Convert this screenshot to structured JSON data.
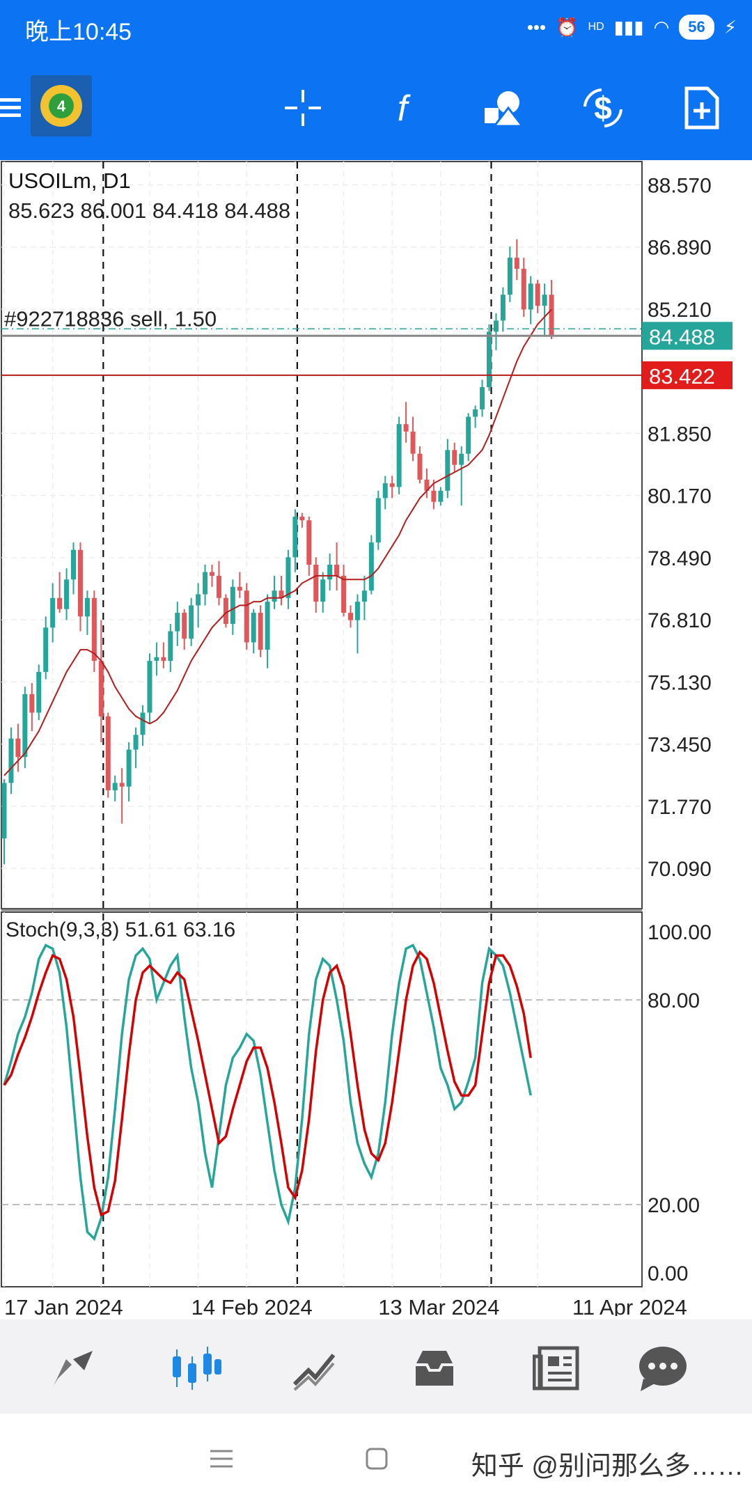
{
  "status": {
    "time": "晚上10:45",
    "battery": "56",
    "network": "HD"
  },
  "toolbar": {
    "icons": [
      "menu-icon",
      "metatrader-logo",
      "crosshair-icon",
      "function-icon",
      "objects-icon",
      "trade-dollar-icon",
      "new-order-icon"
    ]
  },
  "chart_data": {
    "type": "candlestick",
    "symbol": "USOILm",
    "timeframe": "D1",
    "title": "USOILm, D1",
    "ohlc_header": "85.623 86.001 84.418 84.488",
    "order_label": "#922718836 sell, 1.50",
    "current_price": 84.488,
    "current_price_label": "84.488",
    "order_price": 83.422,
    "order_price_label": "83.422",
    "ylim": [
      69.0,
      89.2
    ],
    "y_ticks": [
      "88.570",
      "86.890",
      "85.210",
      "81.850",
      "80.170",
      "78.490",
      "76.810",
      "75.130",
      "73.450",
      "71.770",
      "70.090"
    ],
    "y_tick_values": [
      88.57,
      86.89,
      85.21,
      81.85,
      80.17,
      78.49,
      76.81,
      75.13,
      73.45,
      71.77,
      70.09
    ],
    "x_ticks": [
      "17 Jan 2024",
      "14 Feb 2024",
      "13 Mar 2024",
      "11 Apr 2024"
    ],
    "x_tick_index": [
      0,
      27,
      54,
      82
    ],
    "period_separators_index": [
      14,
      42,
      70
    ],
    "candles": [
      [
        70.9,
        72.5,
        70.2,
        72.4
      ],
      [
        72.4,
        73.9,
        72.1,
        73.6
      ],
      [
        73.6,
        74.0,
        72.7,
        73.1
      ],
      [
        73.1,
        75.0,
        72.8,
        74.8
      ],
      [
        74.8,
        75.1,
        73.8,
        74.3
      ],
      [
        74.3,
        75.6,
        74.1,
        75.4
      ],
      [
        75.4,
        76.9,
        75.2,
        76.6
      ],
      [
        76.6,
        77.8,
        76.2,
        77.4
      ],
      [
        77.4,
        78.1,
        77.0,
        77.1
      ],
      [
        77.1,
        78.2,
        76.8,
        77.9
      ],
      [
        77.9,
        78.9,
        77.5,
        78.7
      ],
      [
        78.7,
        78.9,
        76.5,
        76.9
      ],
      [
        76.9,
        77.6,
        76.4,
        77.4
      ],
      [
        77.4,
        77.6,
        75.4,
        75.7
      ],
      [
        75.7,
        76.8,
        73.5,
        74.2
      ],
      [
        74.2,
        74.3,
        72.0,
        72.2
      ],
      [
        72.2,
        72.6,
        71.9,
        72.4
      ],
      [
        72.4,
        72.8,
        71.3,
        72.3
      ],
      [
        72.3,
        73.5,
        71.9,
        73.3
      ],
      [
        73.3,
        73.9,
        72.8,
        73.7
      ],
      [
        73.7,
        74.5,
        73.4,
        74.3
      ],
      [
        74.3,
        75.9,
        74.0,
        75.7
      ],
      [
        75.7,
        76.2,
        75.3,
        75.8
      ],
      [
        75.8,
        76.2,
        75.5,
        75.7
      ],
      [
        75.7,
        76.7,
        75.4,
        76.5
      ],
      [
        76.5,
        77.3,
        76.1,
        77.0
      ],
      [
        77.0,
        77.1,
        76.0,
        76.3
      ],
      [
        76.3,
        77.4,
        76.1,
        77.2
      ],
      [
        77.2,
        77.8,
        76.6,
        77.5
      ],
      [
        77.5,
        78.3,
        77.2,
        78.1
      ],
      [
        78.1,
        78.3,
        77.7,
        78.0
      ],
      [
        78.0,
        78.4,
        77.2,
        77.4
      ],
      [
        77.4,
        77.5,
        76.6,
        76.7
      ],
      [
        76.7,
        77.9,
        76.4,
        77.7
      ],
      [
        77.7,
        78.1,
        77.4,
        77.6
      ],
      [
        77.6,
        77.8,
        76.0,
        76.2
      ],
      [
        76.2,
        77.1,
        75.9,
        77.0
      ],
      [
        77.0,
        77.2,
        75.8,
        76.0
      ],
      [
        76.0,
        77.5,
        75.5,
        77.3
      ],
      [
        77.3,
        78.0,
        77.1,
        77.6
      ],
      [
        77.6,
        78.0,
        77.2,
        77.4
      ],
      [
        77.4,
        78.7,
        77.1,
        78.5
      ],
      [
        78.5,
        79.8,
        78.1,
        79.6
      ],
      [
        79.6,
        79.7,
        79.3,
        79.5
      ],
      [
        79.5,
        79.6,
        78.0,
        78.3
      ],
      [
        78.3,
        78.5,
        77.0,
        77.3
      ],
      [
        77.3,
        78.1,
        77.0,
        77.9
      ],
      [
        77.9,
        78.6,
        77.6,
        78.3
      ],
      [
        78.3,
        78.9,
        77.6,
        78.0
      ],
      [
        78.0,
        78.3,
        76.9,
        77.0
      ],
      [
        77.0,
        77.2,
        76.6,
        76.8
      ],
      [
        76.8,
        77.5,
        75.9,
        77.3
      ],
      [
        77.3,
        78.0,
        76.8,
        77.6
      ],
      [
        77.6,
        79.1,
        77.5,
        78.9
      ],
      [
        78.9,
        80.3,
        78.7,
        80.1
      ],
      [
        80.1,
        80.7,
        79.8,
        80.5
      ],
      [
        80.5,
        80.7,
        80.1,
        80.4
      ],
      [
        80.4,
        82.3,
        80.2,
        82.1
      ],
      [
        82.1,
        82.7,
        81.6,
        81.9
      ],
      [
        81.9,
        82.3,
        81.1,
        81.3
      ],
      [
        81.3,
        81.5,
        80.5,
        80.6
      ],
      [
        80.6,
        80.9,
        80.1,
        80.3
      ],
      [
        80.3,
        80.6,
        79.8,
        80.0
      ],
      [
        80.0,
        80.4,
        79.9,
        80.3
      ],
      [
        80.3,
        81.7,
        80.1,
        81.4
      ],
      [
        81.4,
        81.6,
        80.8,
        81.0
      ],
      [
        81.0,
        81.5,
        79.9,
        81.3
      ],
      [
        81.3,
        82.4,
        81.1,
        82.3
      ],
      [
        82.3,
        82.6,
        82.0,
        82.5
      ],
      [
        82.5,
        83.3,
        82.3,
        83.1
      ],
      [
        83.1,
        84.8,
        83.0,
        84.6
      ],
      [
        84.6,
        85.1,
        84.1,
        84.9
      ],
      [
        84.9,
        85.8,
        84.6,
        85.6
      ],
      [
        85.6,
        86.9,
        85.4,
        86.6
      ],
      [
        86.6,
        87.1,
        86.0,
        86.3
      ],
      [
        86.3,
        86.6,
        85.0,
        85.2
      ],
      [
        85.2,
        86.1,
        84.8,
        85.9
      ],
      [
        85.9,
        86.0,
        85.1,
        85.3
      ],
      [
        85.3,
        85.9,
        84.5,
        85.6
      ],
      [
        85.6,
        86.0,
        84.4,
        84.5
      ]
    ],
    "ma": [
      72.6,
      72.8,
      73.0,
      73.2,
      73.5,
      73.8,
      74.2,
      74.6,
      75.0,
      75.4,
      75.7,
      76.0,
      76.0,
      75.9,
      75.7,
      75.4,
      75.0,
      74.7,
      74.4,
      74.2,
      74.1,
      74.0,
      74.1,
      74.3,
      74.6,
      74.9,
      75.3,
      75.7,
      76.0,
      76.3,
      76.6,
      76.8,
      77.0,
      77.1,
      77.2,
      77.2,
      77.3,
      77.3,
      77.4,
      77.4,
      77.4,
      77.5,
      77.6,
      77.8,
      77.9,
      78.0,
      78.0,
      78.0,
      78.0,
      77.9,
      77.9,
      77.9,
      77.9,
      78.0,
      78.2,
      78.5,
      78.8,
      79.1,
      79.5,
      79.8,
      80.1,
      80.3,
      80.5,
      80.6,
      80.7,
      80.8,
      80.9,
      81.0,
      81.2,
      81.4,
      81.8,
      82.3,
      82.8,
      83.3,
      83.8,
      84.2,
      84.5,
      84.8,
      85.0,
      85.2
    ],
    "stoch": {
      "label": "Stoch(9,3,3) 51.61 63.16",
      "k_value": 51.61,
      "d_value": 63.16,
      "ylim": [
        0,
        100
      ],
      "y_ticks": [
        "100.00",
        "80.00",
        "20.00",
        "0.00"
      ],
      "y_tick_values": [
        100,
        80,
        20,
        0
      ],
      "levels": [
        80,
        20
      ],
      "k": [
        55,
        62,
        70,
        75,
        82,
        92,
        96,
        95,
        88,
        72,
        50,
        28,
        12,
        10,
        16,
        28,
        48,
        70,
        86,
        93,
        95,
        92,
        80,
        85,
        90,
        93,
        75,
        60,
        50,
        35,
        25,
        40,
        55,
        63,
        66,
        70,
        68,
        58,
        44,
        30,
        20,
        15,
        25,
        45,
        70,
        86,
        92,
        90,
        80,
        68,
        50,
        38,
        32,
        28,
        35,
        50,
        70,
        85,
        95,
        96,
        92,
        82,
        72,
        60,
        55,
        48,
        50,
        56,
        63,
        85,
        95,
        93,
        90,
        82,
        72,
        62,
        52
      ],
      "d": [
        55,
        58,
        64,
        69,
        75,
        82,
        88,
        93,
        92,
        86,
        75,
        58,
        40,
        25,
        17,
        18,
        27,
        45,
        64,
        80,
        88,
        90,
        88,
        86,
        85,
        88,
        86,
        77,
        68,
        58,
        48,
        38,
        40,
        48,
        55,
        62,
        66,
        66,
        60,
        50,
        38,
        25,
        22,
        30,
        45,
        65,
        80,
        88,
        90,
        84,
        70,
        55,
        42,
        35,
        33,
        38,
        50,
        65,
        80,
        90,
        94,
        92,
        85,
        75,
        65,
        56,
        52,
        52,
        55,
        70,
        85,
        93,
        93,
        90,
        84,
        76,
        63
      ]
    }
  },
  "bottom_nav": {
    "items": [
      "trade-icon",
      "chart-icon",
      "history-icon",
      "inbox-icon",
      "news-icon",
      "chat-icon"
    ]
  },
  "system_nav": {
    "watermark": "知乎 @别问那么多……"
  }
}
